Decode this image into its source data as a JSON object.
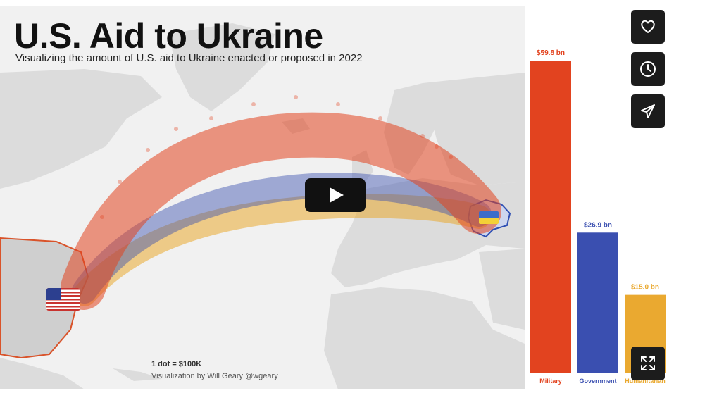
{
  "title": "U.S. Aid to Ukraine",
  "subtitle": "Visualizing the amount of U.S. aid to Ukraine enacted or proposed in 2022",
  "legend_note": "1 dot = $100K",
  "credit": "Visualization by Will Geary @wgeary",
  "colors": {
    "military": "#e2431f",
    "government": "#3a4fb0",
    "humanitarian": "#eaa930",
    "land": "#dcdcdc",
    "sea": "#f1f1f1",
    "us_outline": "#d9532a",
    "ua_outline": "#2f4fb3"
  },
  "side_actions": [
    {
      "name": "like",
      "icon": "heart-icon"
    },
    {
      "name": "watch-later",
      "icon": "clock-icon"
    },
    {
      "name": "share",
      "icon": "send-icon"
    }
  ],
  "fullscreen_icon": "fullscreen-icon",
  "play_icon": "play-icon",
  "chart_data": {
    "type": "bar",
    "categories": [
      "Military",
      "Government",
      "Humanitarian"
    ],
    "values": [
      59.8,
      26.9,
      15.0
    ],
    "value_labels": [
      "$59.8 bn",
      "$26.9 bn",
      "$15.0 bn"
    ],
    "colors": [
      "#e2431f",
      "#3a4fb0",
      "#eaa930"
    ],
    "ylim": [
      0,
      59.8
    ]
  }
}
